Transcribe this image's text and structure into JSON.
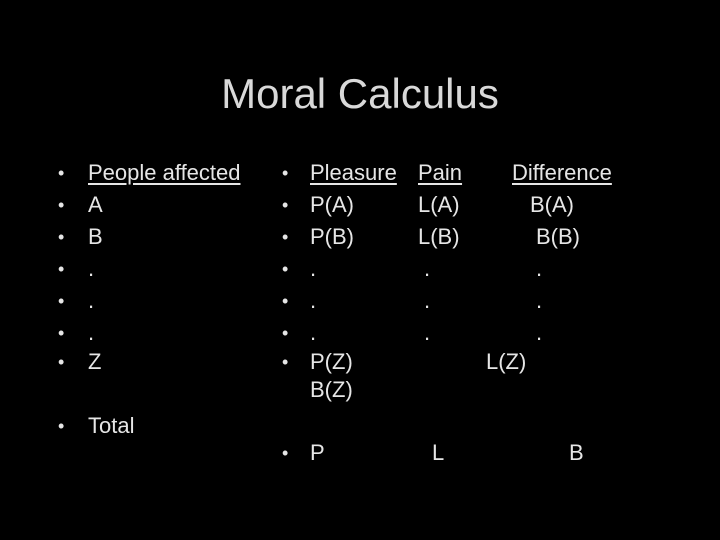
{
  "title": "Moral Calculus",
  "left_column": {
    "header": "People affected",
    "items": [
      "A",
      "B",
      ".",
      ".",
      ".",
      "Z"
    ],
    "total": "Total"
  },
  "right_column": {
    "headers": {
      "pleasure": "Pleasure",
      "pain": "Pain",
      "difference": "Difference"
    },
    "rows": [
      {
        "pleasure": "P(A)",
        "pain": "L(A)",
        "difference": "B(A)"
      },
      {
        "pleasure": "P(B)",
        "pain": "L(B)",
        "difference": "B(B)"
      },
      {
        "pleasure": ".",
        "pain": ".",
        "difference": "."
      },
      {
        "pleasure": ".",
        "pain": ".",
        "difference": "."
      },
      {
        "pleasure": ".",
        "pain": ".",
        "difference": "."
      }
    ],
    "last_row": {
      "pleasure": "P(Z)",
      "pain": "L(Z)",
      "difference": "B(Z)"
    },
    "totals": {
      "pleasure": "P",
      "pain": "L",
      "difference": "B"
    }
  },
  "bullet_char": "•"
}
